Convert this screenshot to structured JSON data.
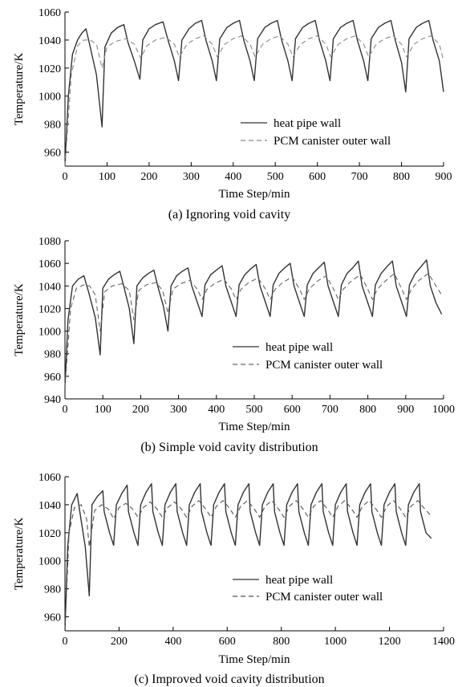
{
  "chart_data": [
    {
      "type": "line",
      "caption": "(a) Ignoring void cavity",
      "xlabel": "Time Step/min",
      "ylabel": "Temperature/K",
      "xlim": [
        0,
        900
      ],
      "ylim": [
        950,
        1060
      ],
      "xticks": [
        0,
        100,
        200,
        300,
        400,
        500,
        600,
        700,
        800,
        900
      ],
      "yticks": [
        960,
        980,
        1000,
        1020,
        1040,
        1060
      ],
      "legend_position": "lower-right",
      "grid": false,
      "series": [
        {
          "name": "heat pipe wall",
          "style": "solid",
          "color": "#333333",
          "x": [
            0,
            8,
            18,
            30,
            40,
            50,
            60,
            75,
            88,
            95,
            110,
            125,
            140,
            150,
            165,
            178,
            185,
            200,
            215,
            233,
            245,
            260,
            270,
            278,
            295,
            310,
            325,
            335,
            350,
            360,
            368,
            385,
            400,
            415,
            425,
            440,
            450,
            458,
            475,
            490,
            505,
            515,
            530,
            540,
            548,
            565,
            580,
            595,
            605,
            620,
            630,
            638,
            655,
            670,
            685,
            695,
            710,
            720,
            728,
            745,
            760,
            775,
            785,
            800,
            810,
            818,
            835,
            850,
            865,
            875,
            890,
            900
          ],
          "y": [
            950,
            1000,
            1030,
            1040,
            1045,
            1048,
            1035,
            1015,
            978,
            1035,
            1045,
            1049,
            1051,
            1038,
            1025,
            1012,
            1040,
            1048,
            1051,
            1053,
            1040,
            1025,
            1011,
            1040,
            1048,
            1052,
            1054,
            1040,
            1025,
            1011,
            1041,
            1049,
            1052,
            1054,
            1040,
            1025,
            1011,
            1041,
            1049,
            1052,
            1054,
            1040,
            1025,
            1011,
            1041,
            1049,
            1052,
            1054,
            1040,
            1025,
            1011,
            1041,
            1049,
            1052,
            1054,
            1040,
            1025,
            1011,
            1041,
            1049,
            1052,
            1054,
            1040,
            1024,
            1003,
            1041,
            1049,
            1052,
            1054,
            1040,
            1025,
            1003
          ]
        },
        {
          "name": "PCM canister outer wall",
          "style": "dashed",
          "color": "#888888",
          "x": [
            0,
            15,
            30,
            45,
            60,
            75,
            88,
            100,
            120,
            145,
            165,
            180,
            195,
            215,
            240,
            260,
            272,
            290,
            310,
            330,
            350,
            362,
            380,
            400,
            420,
            440,
            452,
            470,
            490,
            510,
            530,
            542,
            560,
            580,
            600,
            620,
            632,
            650,
            670,
            690,
            710,
            722,
            740,
            760,
            780,
            800,
            812,
            830,
            850,
            870,
            890,
            900
          ],
          "y": [
            950,
            1015,
            1036,
            1040,
            1040,
            1037,
            1020,
            1035,
            1039,
            1041,
            1037,
            1027,
            1036,
            1040,
            1042,
            1037,
            1028,
            1037,
            1041,
            1043,
            1037,
            1028,
            1037,
            1041,
            1043,
            1037,
            1028,
            1037,
            1041,
            1043,
            1037,
            1028,
            1037,
            1041,
            1043,
            1037,
            1028,
            1037,
            1041,
            1043,
            1037,
            1028,
            1037,
            1041,
            1043,
            1037,
            1028,
            1037,
            1041,
            1043,
            1037,
            1025
          ]
        }
      ]
    },
    {
      "type": "line",
      "caption": "(b) Simple void cavity distribution",
      "xlabel": "Time Step/min",
      "ylabel": "Temperature/K",
      "xlim": [
        0,
        1000
      ],
      "ylim": [
        940,
        1080
      ],
      "xticks": [
        0,
        100,
        200,
        300,
        400,
        500,
        600,
        700,
        800,
        900,
        1000
      ],
      "yticks": [
        940,
        960,
        980,
        1000,
        1020,
        1040,
        1060,
        1080
      ],
      "legend_position": "lower-right",
      "grid": false,
      "series": [
        {
          "name": "heat pipe wall",
          "style": "solid",
          "color": "#333333",
          "x": [
            0,
            8,
            20,
            35,
            50,
            62,
            80,
            93,
            100,
            115,
            130,
            145,
            155,
            170,
            182,
            190,
            205,
            220,
            235,
            245,
            260,
            272,
            280,
            295,
            310,
            325,
            335,
            350,
            362,
            370,
            385,
            400,
            415,
            425,
            440,
            452,
            460,
            475,
            490,
            505,
            515,
            530,
            542,
            550,
            565,
            580,
            595,
            605,
            620,
            632,
            640,
            655,
            670,
            685,
            695,
            710,
            722,
            730,
            745,
            760,
            775,
            785,
            800,
            812,
            820,
            835,
            850,
            865,
            875,
            890,
            902,
            910,
            925,
            940,
            955,
            965,
            980,
            995
          ],
          "y": [
            950,
            1010,
            1040,
            1046,
            1049,
            1035,
            1012,
            979,
            1038,
            1046,
            1050,
            1053,
            1040,
            1020,
            989,
            1040,
            1047,
            1051,
            1054,
            1040,
            1022,
            1000,
            1040,
            1049,
            1053,
            1056,
            1040,
            1025,
            1013,
            1041,
            1050,
            1054,
            1058,
            1040,
            1025,
            1013,
            1041,
            1050,
            1055,
            1059,
            1040,
            1025,
            1013,
            1041,
            1051,
            1056,
            1060,
            1040,
            1025,
            1013,
            1041,
            1051,
            1056,
            1061,
            1040,
            1025,
            1013,
            1041,
            1051,
            1056,
            1062,
            1040,
            1025,
            1013,
            1041,
            1051,
            1057,
            1062,
            1040,
            1025,
            1013,
            1041,
            1051,
            1057,
            1063,
            1040,
            1025,
            1015
          ]
        },
        {
          "name": "PCM canister outer wall",
          "style": "dashed",
          "color": "#666666",
          "x": [
            0,
            15,
            30,
            50,
            65,
            80,
            93,
            105,
            125,
            150,
            170,
            182,
            195,
            215,
            240,
            258,
            272,
            285,
            305,
            330,
            350,
            362,
            375,
            395,
            420,
            440,
            452,
            465,
            485,
            510,
            530,
            542,
            555,
            575,
            600,
            620,
            632,
            645,
            665,
            690,
            710,
            722,
            735,
            755,
            780,
            800,
            812,
            825,
            845,
            870,
            890,
            902,
            915,
            935,
            960,
            980,
            995
          ],
          "y": [
            950,
            1020,
            1038,
            1041,
            1040,
            1032,
            1000,
            1035,
            1040,
            1042,
            1036,
            1010,
            1036,
            1041,
            1043,
            1036,
            1016,
            1037,
            1042,
            1045,
            1037,
            1028,
            1037,
            1042,
            1046,
            1037,
            1028,
            1037,
            1043,
            1047,
            1037,
            1028,
            1037,
            1043,
            1048,
            1037,
            1028,
            1037,
            1044,
            1049,
            1037,
            1028,
            1037,
            1044,
            1050,
            1037,
            1028,
            1037,
            1044,
            1051,
            1037,
            1028,
            1037,
            1045,
            1051,
            1040,
            1032
          ]
        }
      ]
    },
    {
      "type": "line",
      "caption": "(c) Improved void cavity distribution",
      "xlabel": "Time Step/min",
      "ylabel": "Temperature/K",
      "xlim": [
        0,
        1400
      ],
      "ylim": [
        950,
        1060
      ],
      "xticks": [
        0,
        200,
        400,
        600,
        800,
        1000,
        1200,
        1400
      ],
      "yticks": [
        960,
        980,
        1000,
        1020,
        1040,
        1060
      ],
      "legend_position": "lower-right",
      "grid": false,
      "series": [
        {
          "name": "heat pipe wall",
          "style": "solid",
          "color": "#333333",
          "x": [
            0,
            10,
            25,
            45,
            55,
            75,
            90,
            100,
            120,
            140,
            145,
            165,
            180,
            190,
            210,
            230,
            235,
            255,
            270,
            280,
            300,
            320,
            325,
            345,
            360,
            370,
            390,
            410,
            415,
            435,
            450,
            460,
            480,
            500,
            505,
            525,
            540,
            550,
            570,
            590,
            595,
            615,
            630,
            640,
            660,
            680,
            685,
            705,
            720,
            730,
            750,
            770,
            775,
            795,
            810,
            820,
            840,
            860,
            865,
            885,
            900,
            910,
            930,
            950,
            955,
            975,
            990,
            1000,
            1020,
            1040,
            1045,
            1065,
            1080,
            1090,
            1110,
            1130,
            1135,
            1155,
            1170,
            1180,
            1200,
            1220,
            1225,
            1245,
            1260,
            1270,
            1290,
            1310,
            1315,
            1335,
            1355
          ],
          "y": [
            950,
            1010,
            1040,
            1048,
            1035,
            1010,
            975,
            1040,
            1046,
            1050,
            1035,
            1020,
            1011,
            1040,
            1048,
            1054,
            1035,
            1020,
            1011,
            1040,
            1049,
            1055,
            1035,
            1020,
            1011,
            1040,
            1049,
            1055,
            1035,
            1020,
            1011,
            1040,
            1049,
            1055,
            1035,
            1020,
            1011,
            1040,
            1049,
            1055,
            1035,
            1020,
            1011,
            1040,
            1049,
            1055,
            1035,
            1020,
            1011,
            1040,
            1049,
            1055,
            1035,
            1020,
            1011,
            1040,
            1049,
            1055,
            1035,
            1020,
            1011,
            1040,
            1049,
            1055,
            1035,
            1020,
            1011,
            1040,
            1049,
            1055,
            1035,
            1020,
            1011,
            1040,
            1049,
            1055,
            1035,
            1020,
            1011,
            1040,
            1049,
            1055,
            1035,
            1020,
            1011,
            1040,
            1049,
            1055,
            1035,
            1020,
            1016
          ]
        },
        {
          "name": "PCM canister outer wall",
          "style": "dashed",
          "color": "#555555",
          "x": [
            0,
            15,
            35,
            60,
            80,
            90,
            110,
            135,
            160,
            180,
            200,
            225,
            250,
            270,
            290,
            315,
            340,
            360,
            380,
            405,
            430,
            450,
            470,
            495,
            520,
            540,
            560,
            585,
            610,
            630,
            650,
            675,
            700,
            720,
            740,
            765,
            790,
            810,
            830,
            855,
            880,
            900,
            920,
            945,
            970,
            990,
            1010,
            1035,
            1060,
            1080,
            1100,
            1125,
            1150,
            1170,
            1190,
            1215,
            1240,
            1260,
            1280,
            1305,
            1330,
            1355
          ],
          "y": [
            950,
            1020,
            1038,
            1040,
            1030,
            1010,
            1036,
            1040,
            1037,
            1030,
            1038,
            1041,
            1037,
            1031,
            1038,
            1042,
            1037,
            1031,
            1038,
            1042,
            1037,
            1031,
            1039,
            1043,
            1037,
            1031,
            1039,
            1043,
            1037,
            1031,
            1039,
            1043,
            1037,
            1031,
            1039,
            1043,
            1037,
            1031,
            1039,
            1043,
            1037,
            1031,
            1039,
            1043,
            1037,
            1031,
            1039,
            1043,
            1037,
            1031,
            1039,
            1043,
            1037,
            1031,
            1039,
            1043,
            1037,
            1031,
            1039,
            1043,
            1037,
            1032
          ]
        }
      ]
    }
  ]
}
